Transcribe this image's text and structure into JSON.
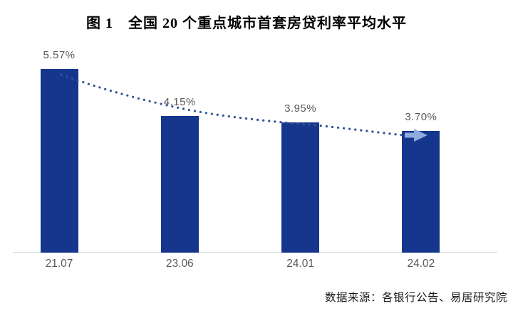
{
  "figure": {
    "title": "图 1　全国 20 个重点城市首套房贷利率平均水平",
    "source_note": "数据来源：各银行公告、易居研究院"
  },
  "colors": {
    "bar": "#15368C",
    "trend_dots": "#2F5597",
    "trend_arrow": "#8FAADC",
    "data_label": "#595959",
    "axis_label": "#595959",
    "axis_line": "#D9D9D9",
    "title_text": "#000000"
  },
  "chart_data": {
    "type": "bar",
    "title": "图 1　全国 20 个重点城市首套房贷利率平均水平",
    "categories": [
      "21.07",
      "23.06",
      "24.01",
      "24.02"
    ],
    "values": [
      5.57,
      4.15,
      3.95,
      3.7
    ],
    "data_labels": [
      "5.57%",
      "4.15%",
      "3.95%",
      "3.70%"
    ],
    "unit": "%",
    "ylim": [
      0,
      6.2
    ],
    "grid": false,
    "legend": false,
    "annotations": [
      "declining dotted trendline ending in right-pointing arrow"
    ],
    "source": "数据来源：各银行公告、易居研究院"
  }
}
